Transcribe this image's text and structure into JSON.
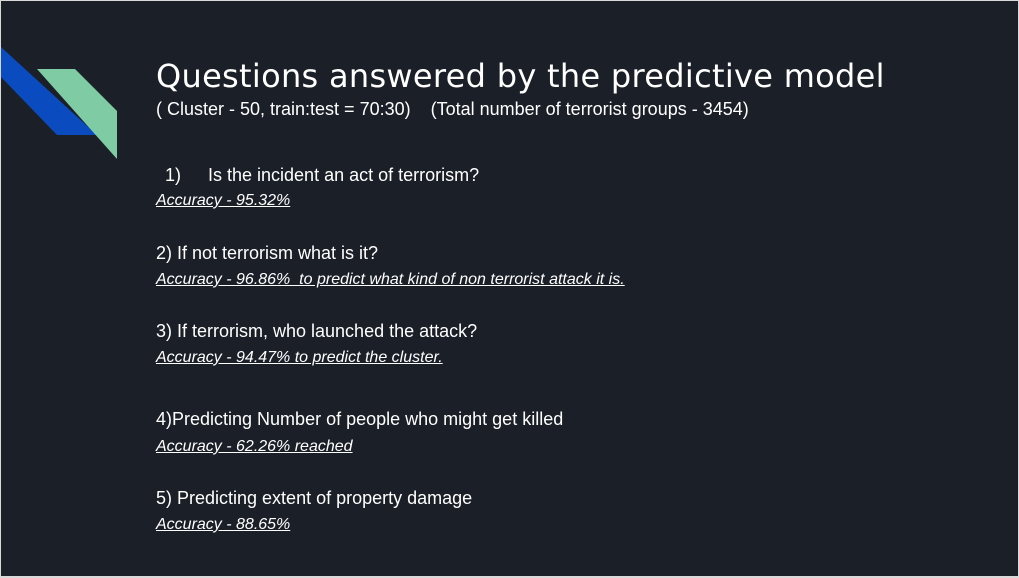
{
  "slide": {
    "title": "Questions answered by the predictive model",
    "subtitle": "( Cluster - 50, train:test = 70:30)    (Total number of terrorist groups - 3454)",
    "colors": {
      "background": "#1b1f27",
      "accent_blue": "#0a4cc0",
      "accent_green": "#7fcba4"
    },
    "questions": [
      {
        "number": "1)",
        "text": "Is the incident an act of terrorism?",
        "accuracy": "Accuracy - 95.32%"
      },
      {
        "text": "2) If not terrorism what is it?",
        "accuracy": "Accuracy - 96.86%  to predict what kind of non terrorist attack it is."
      },
      {
        "text": "3) If terrorism, who launched the attack?",
        "accuracy": "Accuracy - 94.47% to predict the cluster."
      },
      {
        "text": "4)Predicting Number of people who might get killed",
        "accuracy": "Accuracy - 62.26% reached"
      },
      {
        "text": "5) Predicting extent of property damage",
        "accuracy": "Accuracy - 88.65%"
      }
    ]
  }
}
